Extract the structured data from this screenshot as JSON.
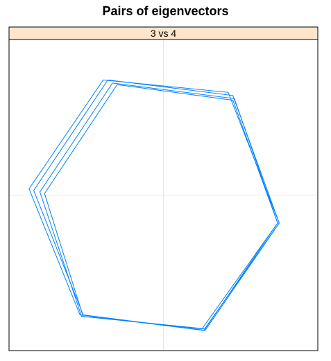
{
  "chart_data": {
    "type": "line",
    "title": "Pairs of eigenvectors",
    "panel_label": "3 vs 4",
    "xlabel": "",
    "ylabel": "",
    "xlim": [
      -1,
      1
    ],
    "ylim": [
      -1,
      1
    ],
    "grid": "center-lines",
    "series_color": "#0080ff",
    "strip_color": "#ffe5cc",
    "series": [
      {
        "x": [
          -0.39,
          0.42,
          0.75,
          0.26,
          -0.54,
          -0.87,
          -0.39
        ],
        "y": [
          0.74,
          0.66,
          -0.18,
          -0.87,
          -0.77,
          0.04,
          0.74
        ]
      },
      {
        "x": [
          -0.36,
          0.45,
          0.75,
          0.27,
          -0.52,
          -0.84,
          -0.36
        ],
        "y": [
          0.74,
          0.64,
          -0.18,
          -0.87,
          -0.77,
          0.03,
          0.74
        ]
      },
      {
        "x": [
          -0.33,
          0.46,
          0.74,
          0.27,
          -0.53,
          -0.8,
          -0.33
        ],
        "y": [
          0.72,
          0.62,
          -0.18,
          -0.86,
          -0.78,
          0.02,
          0.72
        ]
      },
      {
        "x": [
          -0.3,
          0.45,
          0.74,
          0.25,
          -0.52,
          -0.77,
          -0.3
        ],
        "y": [
          0.71,
          0.61,
          -0.18,
          -0.86,
          -0.78,
          0.01,
          0.71
        ]
      }
    ]
  }
}
